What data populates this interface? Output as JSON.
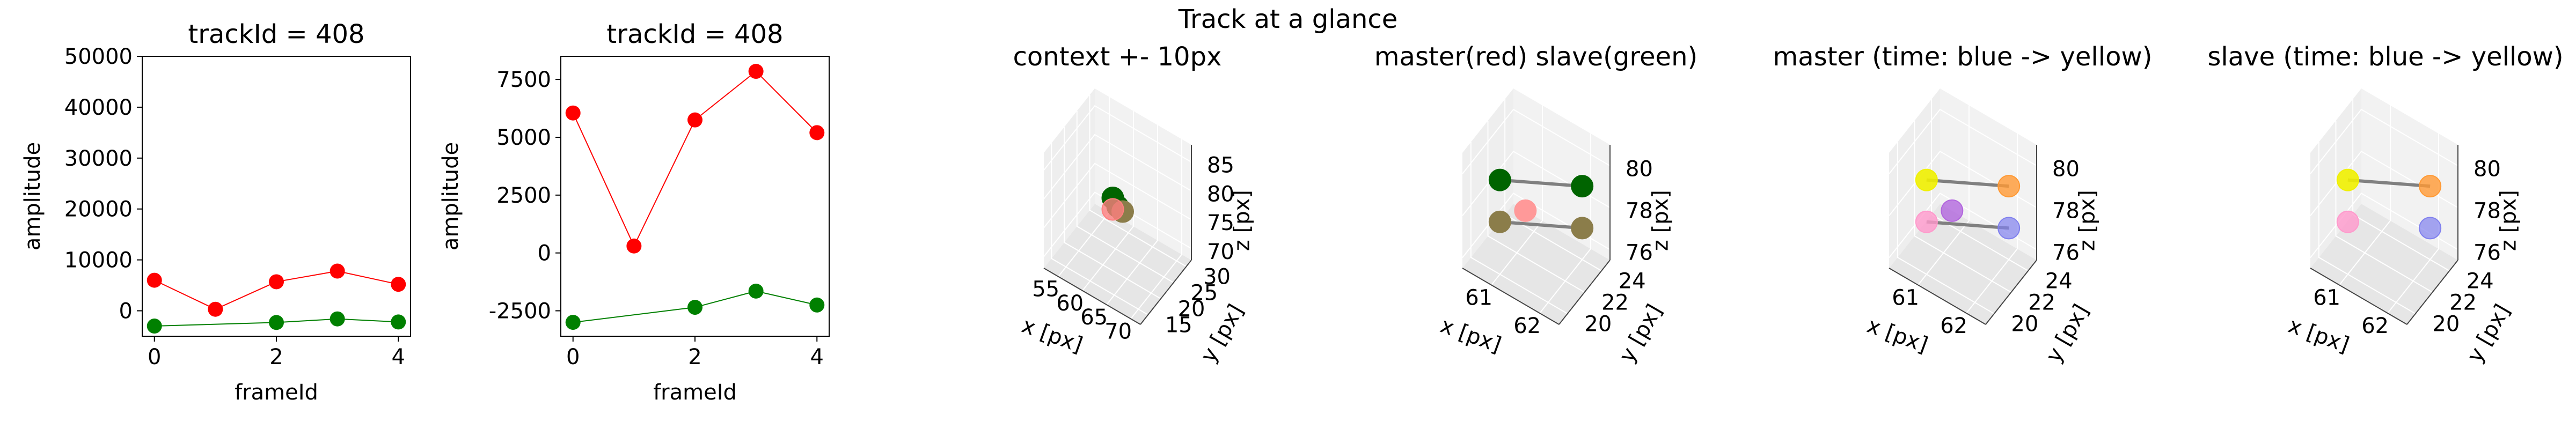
{
  "suptitle": "Track at a glance",
  "chart_data": [
    {
      "type": "scatter",
      "title": "trackId = 408",
      "xlabel": "frameId",
      "ylabel": "amplitude",
      "xlim": [
        -0.2,
        4.2
      ],
      "ylim": [
        -5000,
        50000
      ],
      "xticks": [
        0,
        2,
        4
      ],
      "yticks": [
        0,
        10000,
        20000,
        30000,
        40000,
        50000
      ],
      "grid": false,
      "series": [
        {
          "color": "#ff0000",
          "line": true,
          "x": [
            0,
            1,
            2,
            3,
            4
          ],
          "y": [
            6000,
            300,
            5700,
            7800,
            5200
          ]
        },
        {
          "color": "#008000",
          "line": true,
          "x": [
            0,
            2,
            3,
            4
          ],
          "y": [
            -3000,
            -2300,
            -1600,
            -2200
          ]
        }
      ]
    },
    {
      "type": "scatter",
      "title": "trackId = 408",
      "xlabel": "frameId",
      "ylabel": "amplitude",
      "xlim": [
        -0.2,
        4.2
      ],
      "ylim": [
        -3600,
        8500
      ],
      "xticks": [
        0,
        2,
        4
      ],
      "yticks": [
        -2500,
        0,
        2500,
        5000,
        7500
      ],
      "grid": false,
      "series": [
        {
          "color": "#ff0000",
          "line": true,
          "x": [
            0,
            1,
            2,
            3,
            4
          ],
          "y": [
            6050,
            300,
            5750,
            7850,
            5200
          ]
        },
        {
          "color": "#008000",
          "line": true,
          "x": [
            0,
            2,
            3,
            4
          ],
          "y": [
            -3000,
            -2350,
            -1650,
            -2250
          ]
        }
      ]
    },
    {
      "type": "scatter3d",
      "title": "context +- 10px",
      "xlabel": "x [px]",
      "ylabel": "y [px]",
      "zlabel": "z [px]",
      "xlim": [
        52,
        72
      ],
      "ylim": [
        12,
        32
      ],
      "zlim": [
        68,
        88
      ],
      "xticks": [
        55,
        60,
        65,
        70
      ],
      "yticks": [
        15,
        20,
        25,
        30
      ],
      "zticks": [
        70,
        75,
        80,
        85
      ],
      "points": [
        {
          "x": 61,
          "y": 22,
          "z": 79,
          "color": "#006400",
          "alpha": 1
        },
        {
          "x": 62,
          "y": 22,
          "z": 78,
          "color": "#006400",
          "alpha": 1
        },
        {
          "x": 62,
          "y": 24,
          "z": 76,
          "color": "#8b7d4a",
          "alpha": 1
        },
        {
          "x": 61,
          "y": 22,
          "z": 77,
          "color": "#ff7f7f",
          "alpha": 0.8
        }
      ],
      "lines": []
    },
    {
      "type": "scatter3d",
      "title": "master(red) slave(green)",
      "xlabel": "x [px]",
      "ylabel": "y [px]",
      "zlabel": "z [px]",
      "xlim": [
        60.4,
        62.4
      ],
      "ylim": [
        19,
        25
      ],
      "zlim": [
        75.5,
        81
      ],
      "xticks": [
        61,
        62
      ],
      "yticks": [
        20,
        22,
        24
      ],
      "zticks": [
        76,
        78,
        80
      ],
      "points": [
        {
          "x": 61,
          "y": 20,
          "z": 80,
          "color": "#006400",
          "alpha": 1
        },
        {
          "x": 62,
          "y": 24,
          "z": 79,
          "color": "#006400",
          "alpha": 1
        },
        {
          "x": 61,
          "y": 20,
          "z": 78,
          "color": "#8b7d4a",
          "alpha": 1
        },
        {
          "x": 62,
          "y": 24,
          "z": 77,
          "color": "#8b7d4a",
          "alpha": 1
        },
        {
          "x": 61,
          "y": 23,
          "z": 77,
          "color": "#ff9999",
          "alpha": 1
        }
      ],
      "lines": [
        {
          "from": 0,
          "to": 1,
          "color": "#808080"
        },
        {
          "from": 2,
          "to": 3,
          "color": "#808080"
        }
      ]
    },
    {
      "type": "scatter3d",
      "title": "master (time: blue -> yellow)",
      "xlabel": "x [px]",
      "ylabel": "y [px]",
      "zlabel": "z [px]",
      "xlim": [
        60.4,
        62.4
      ],
      "ylim": [
        19,
        25
      ],
      "zlim": [
        75.5,
        81
      ],
      "xticks": [
        61,
        62
      ],
      "yticks": [
        20,
        22,
        24
      ],
      "zticks": [
        76,
        78,
        80
      ],
      "points": [
        {
          "x": 61,
          "y": 20,
          "z": 80,
          "color": "#f0f000",
          "alpha": 0.9
        },
        {
          "x": 62,
          "y": 24,
          "z": 79,
          "color": "#ff9933",
          "alpha": 0.8
        },
        {
          "x": 61,
          "y": 20,
          "z": 78,
          "color": "#ff99cc",
          "alpha": 0.8
        },
        {
          "x": 62,
          "y": 24,
          "z": 77,
          "color": "#8080ee",
          "alpha": 0.7
        },
        {
          "x": 61,
          "y": 23,
          "z": 77,
          "color": "#b266dd",
          "alpha": 0.8
        }
      ],
      "lines": [
        {
          "from": 0,
          "to": 1,
          "color": "#808080"
        },
        {
          "from": 2,
          "to": 3,
          "color": "#808080"
        }
      ]
    },
    {
      "type": "scatter3d",
      "title": "slave (time: blue -> yellow)",
      "xlabel": "x [px]",
      "ylabel": "y [px]",
      "zlabel": "z [px]",
      "xlim": [
        60.4,
        62.4
      ],
      "ylim": [
        19,
        25
      ],
      "zlim": [
        75.5,
        81
      ],
      "xticks": [
        61,
        62
      ],
      "yticks": [
        20,
        22,
        24
      ],
      "zticks": [
        76,
        78,
        80
      ],
      "points": [
        {
          "x": 61,
          "y": 20,
          "z": 80,
          "color": "#f0f000",
          "alpha": 0.9
        },
        {
          "x": 62,
          "y": 24,
          "z": 79,
          "color": "#ff9933",
          "alpha": 0.8
        },
        {
          "x": 61,
          "y": 20,
          "z": 78,
          "color": "#ff99cc",
          "alpha": 0.8
        },
        {
          "x": 62,
          "y": 24,
          "z": 77,
          "color": "#8080ee",
          "alpha": 0.7
        }
      ],
      "lines": [
        {
          "from": 0,
          "to": 1,
          "color": "#808080"
        }
      ]
    }
  ]
}
